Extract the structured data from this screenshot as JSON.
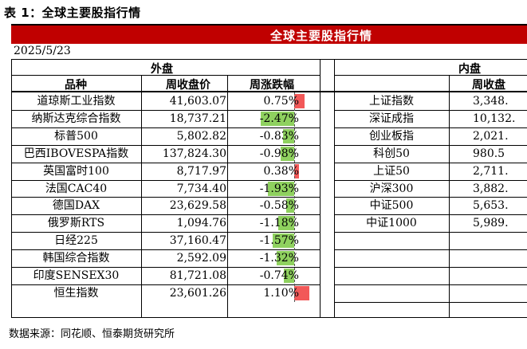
{
  "caption": "表 1：全球主要股指行情",
  "banner": "全球主要股指行情",
  "date": "2025/5/23",
  "sections": {
    "foreign": "外盘",
    "domestic": "内盘"
  },
  "headers": {
    "name": "品种",
    "close": "周收盘价",
    "change": "周涨跌幅",
    "close_right": "周收盘"
  },
  "colors": {
    "banner": "#c00000",
    "positive_bar": "#f25858",
    "negative_bar": "#8fd15f"
  },
  "foreign": [
    {
      "name": "道琼斯工业指数",
      "close": "41,603.07",
      "change": "0.75%",
      "pct": 0.75
    },
    {
      "name": "纳斯达克综合指数",
      "close": "18,737.21",
      "change": "-2.47%",
      "pct": -2.47
    },
    {
      "name": "标普500",
      "close": "5,802.82",
      "change": "-0.83%",
      "pct": -0.83
    },
    {
      "name": "巴西IBOVESPA指数",
      "close": "137,824.30",
      "change": "-0.98%",
      "pct": -0.98
    },
    {
      "name": "英国富时100",
      "close": "8,717.97",
      "change": "0.38%",
      "pct": 0.38
    },
    {
      "name": "法国CAC40",
      "close": "7,734.40",
      "change": "-1.93%",
      "pct": -1.93
    },
    {
      "name": "德国DAX",
      "close": "23,629.58",
      "change": "-0.58%",
      "pct": -0.58
    },
    {
      "name": "俄罗斯RTS",
      "close": "1,094.76",
      "change": "-1.18%",
      "pct": -1.18
    },
    {
      "name": "日经225",
      "close": "37,160.47",
      "change": "-1.57%",
      "pct": -1.57
    },
    {
      "name": "韩国综合指数",
      "close": "2,592.09",
      "change": "-1.32%",
      "pct": -1.32
    },
    {
      "name": "印度SENSEX30",
      "close": "81,721.08",
      "change": "-0.74%",
      "pct": -0.74
    },
    {
      "name": "恒生指数",
      "close": "23,601.26",
      "change": "1.10%",
      "pct": 1.1
    }
  ],
  "domestic": [
    {
      "name": "上证指数",
      "close": "3,348."
    },
    {
      "name": "深证成指",
      "close": "10,132."
    },
    {
      "name": "创业板指",
      "close": "2,021."
    },
    {
      "name": "科创50",
      "close": "980.5"
    },
    {
      "name": "上证50",
      "close": "2,711."
    },
    {
      "name": "沪深300",
      "close": "3,882."
    },
    {
      "name": "中证500",
      "close": "5,653."
    },
    {
      "name": "中证1000",
      "close": "5,989."
    }
  ],
  "source": "数据来源：同花顺、恒泰期货研究所"
}
